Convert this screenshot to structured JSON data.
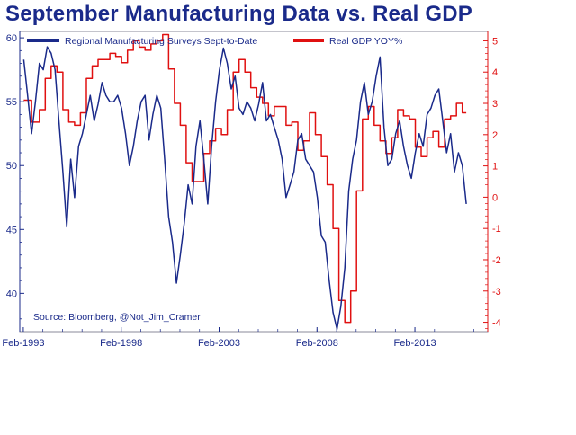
{
  "chart_data": {
    "type": "line",
    "title": "September Manufacturing Data vs. Real GDP",
    "source": "Source: Bloomberg, @Not_Jim_Cramer",
    "x_tick_labels": [
      "Feb-1993",
      "Feb-1998",
      "Feb-2003",
      "Feb-2008",
      "Feb-2013"
    ],
    "x_tick_years": [
      1993.08,
      1998.08,
      2003.08,
      2008.08,
      2013.08
    ],
    "xlim": [
      1992.9,
      2016.8
    ],
    "left_axis": {
      "ylim": [
        37,
        60.5
      ],
      "ticks": [
        40,
        45,
        50,
        55,
        60
      ],
      "color": "#1a2a8a"
    },
    "right_axis": {
      "ylim": [
        -4.3,
        5.3
      ],
      "ticks": [
        -4,
        -3,
        -2,
        -1,
        0,
        1,
        2,
        3,
        4,
        5
      ],
      "color": "#e01010"
    },
    "colors": {
      "manufacturing": "#1a2a8a",
      "gdp": "#e01010",
      "text": "#1a2a8a"
    },
    "series": [
      {
        "name": "Regional Manufacturing Surveys Sept-to-Date",
        "axis": "left",
        "x": [
          1993.1,
          1993.3,
          1993.5,
          1993.7,
          1993.9,
          1994.1,
          1994.3,
          1994.5,
          1994.7,
          1994.9,
          1995.1,
          1995.3,
          1995.5,
          1995.7,
          1995.9,
          1996.1,
          1996.3,
          1996.5,
          1996.7,
          1996.9,
          1997.1,
          1997.3,
          1997.5,
          1997.7,
          1997.9,
          1998.1,
          1998.3,
          1998.5,
          1998.7,
          1998.9,
          1999.1,
          1999.3,
          1999.5,
          1999.7,
          1999.9,
          2000.1,
          2000.3,
          2000.5,
          2000.7,
          2000.9,
          2001.1,
          2001.3,
          2001.5,
          2001.7,
          2001.9,
          2002.1,
          2002.3,
          2002.5,
          2002.7,
          2002.9,
          2003.1,
          2003.3,
          2003.5,
          2003.7,
          2003.9,
          2004.1,
          2004.3,
          2004.5,
          2004.7,
          2004.9,
          2005.1,
          2005.3,
          2005.5,
          2005.7,
          2005.9,
          2006.1,
          2006.3,
          2006.5,
          2006.7,
          2006.9,
          2007.1,
          2007.3,
          2007.5,
          2007.7,
          2007.9,
          2008.1,
          2008.3,
          2008.5,
          2008.7,
          2008.9,
          2009.1,
          2009.3,
          2009.5,
          2009.7,
          2009.9,
          2010.1,
          2010.3,
          2010.5,
          2010.7,
          2010.9,
          2011.1,
          2011.3,
          2011.5,
          2011.7,
          2011.9,
          2012.1,
          2012.3,
          2012.5,
          2012.7,
          2012.9,
          2013.1,
          2013.3,
          2013.5,
          2013.7,
          2013.9,
          2014.1,
          2014.3,
          2014.5,
          2014.7,
          2014.9,
          2015.1,
          2015.3,
          2015.5,
          2015.7
        ],
        "values": [
          58.3,
          55.5,
          52.5,
          55,
          58,
          57.5,
          59.3,
          58.8,
          57.5,
          53.5,
          49.5,
          45.2,
          50.5,
          47.5,
          51.5,
          52.5,
          54,
          55.5,
          53.5,
          54.8,
          56.5,
          55.5,
          55,
          55,
          55.5,
          54.5,
          52.5,
          50,
          51.5,
          53.5,
          55,
          55.5,
          52,
          54,
          55.5,
          54.5,
          50.5,
          46,
          44,
          40.8,
          43,
          45.5,
          48.5,
          47,
          51.5,
          53.5,
          50.5,
          47,
          51.5,
          55,
          57.5,
          59.2,
          58,
          56,
          57,
          54.5,
          54,
          55,
          54.5,
          53.5,
          54.8,
          56.5,
          53.5,
          54,
          53,
          52,
          50.5,
          47.5,
          48.5,
          49.5,
          52,
          52.5,
          50.5,
          50,
          49.5,
          47.5,
          44.5,
          44,
          41,
          38.5,
          37.2,
          39,
          42,
          48,
          50.5,
          52,
          55,
          56.5,
          54,
          55,
          57,
          58.5,
          53,
          50,
          50.5,
          52.5,
          53.5,
          51.5,
          50,
          49,
          51,
          52.5,
          51.5,
          54,
          54.5,
          55.5,
          56,
          53.5,
          51,
          52.5,
          49.5,
          51,
          50,
          47
        ]
      },
      {
        "name": "Real GDP YOY%",
        "axis": "right",
        "x": [
          1993.1,
          1993.5,
          1993.9,
          1994.2,
          1994.5,
          1994.8,
          1995.1,
          1995.4,
          1995.7,
          1996.0,
          1996.3,
          1996.6,
          1996.9,
          1997.2,
          1997.5,
          1997.8,
          1998.1,
          1998.4,
          1998.7,
          1999.0,
          1999.3,
          1999.6,
          1999.9,
          2000.2,
          2000.5,
          2000.8,
          2001.1,
          2001.4,
          2001.7,
          2002.0,
          2002.3,
          2002.6,
          2002.9,
          2003.2,
          2003.5,
          2003.8,
          2004.1,
          2004.4,
          2004.7,
          2005.0,
          2005.3,
          2005.6,
          2005.9,
          2006.2,
          2006.5,
          2006.8,
          2007.1,
          2007.4,
          2007.7,
          2008.0,
          2008.3,
          2008.6,
          2008.9,
          2009.2,
          2009.5,
          2009.8,
          2010.1,
          2010.4,
          2010.7,
          2011.0,
          2011.3,
          2011.6,
          2011.9,
          2012.2,
          2012.5,
          2012.8,
          2013.1,
          2013.4,
          2013.7,
          2014.0,
          2014.3,
          2014.6,
          2014.9,
          2015.2,
          2015.5,
          2015.7
        ],
        "values": [
          3.1,
          2.4,
          2.8,
          3.8,
          4.2,
          4.0,
          2.8,
          2.4,
          2.3,
          2.7,
          3.8,
          4.2,
          4.4,
          4.4,
          4.6,
          4.5,
          4.3,
          4.7,
          5.0,
          4.8,
          4.7,
          4.9,
          5.0,
          5.2,
          4.1,
          3.0,
          2.3,
          1.1,
          0.5,
          0.5,
          1.4,
          1.8,
          2.2,
          2.0,
          2.8,
          4.0,
          4.4,
          4.0,
          3.5,
          3.2,
          3.0,
          2.6,
          2.9,
          2.9,
          2.3,
          2.4,
          1.5,
          1.8,
          2.7,
          2.0,
          1.3,
          0.4,
          -1.0,
          -3.3,
          -4.0,
          -3.0,
          0.2,
          2.5,
          2.9,
          2.3,
          1.8,
          1.4,
          1.9,
          2.8,
          2.6,
          2.5,
          1.6,
          1.3,
          1.9,
          2.1,
          1.6,
          2.5,
          2.6,
          3.0,
          2.7,
          2.7
        ]
      }
    ]
  }
}
